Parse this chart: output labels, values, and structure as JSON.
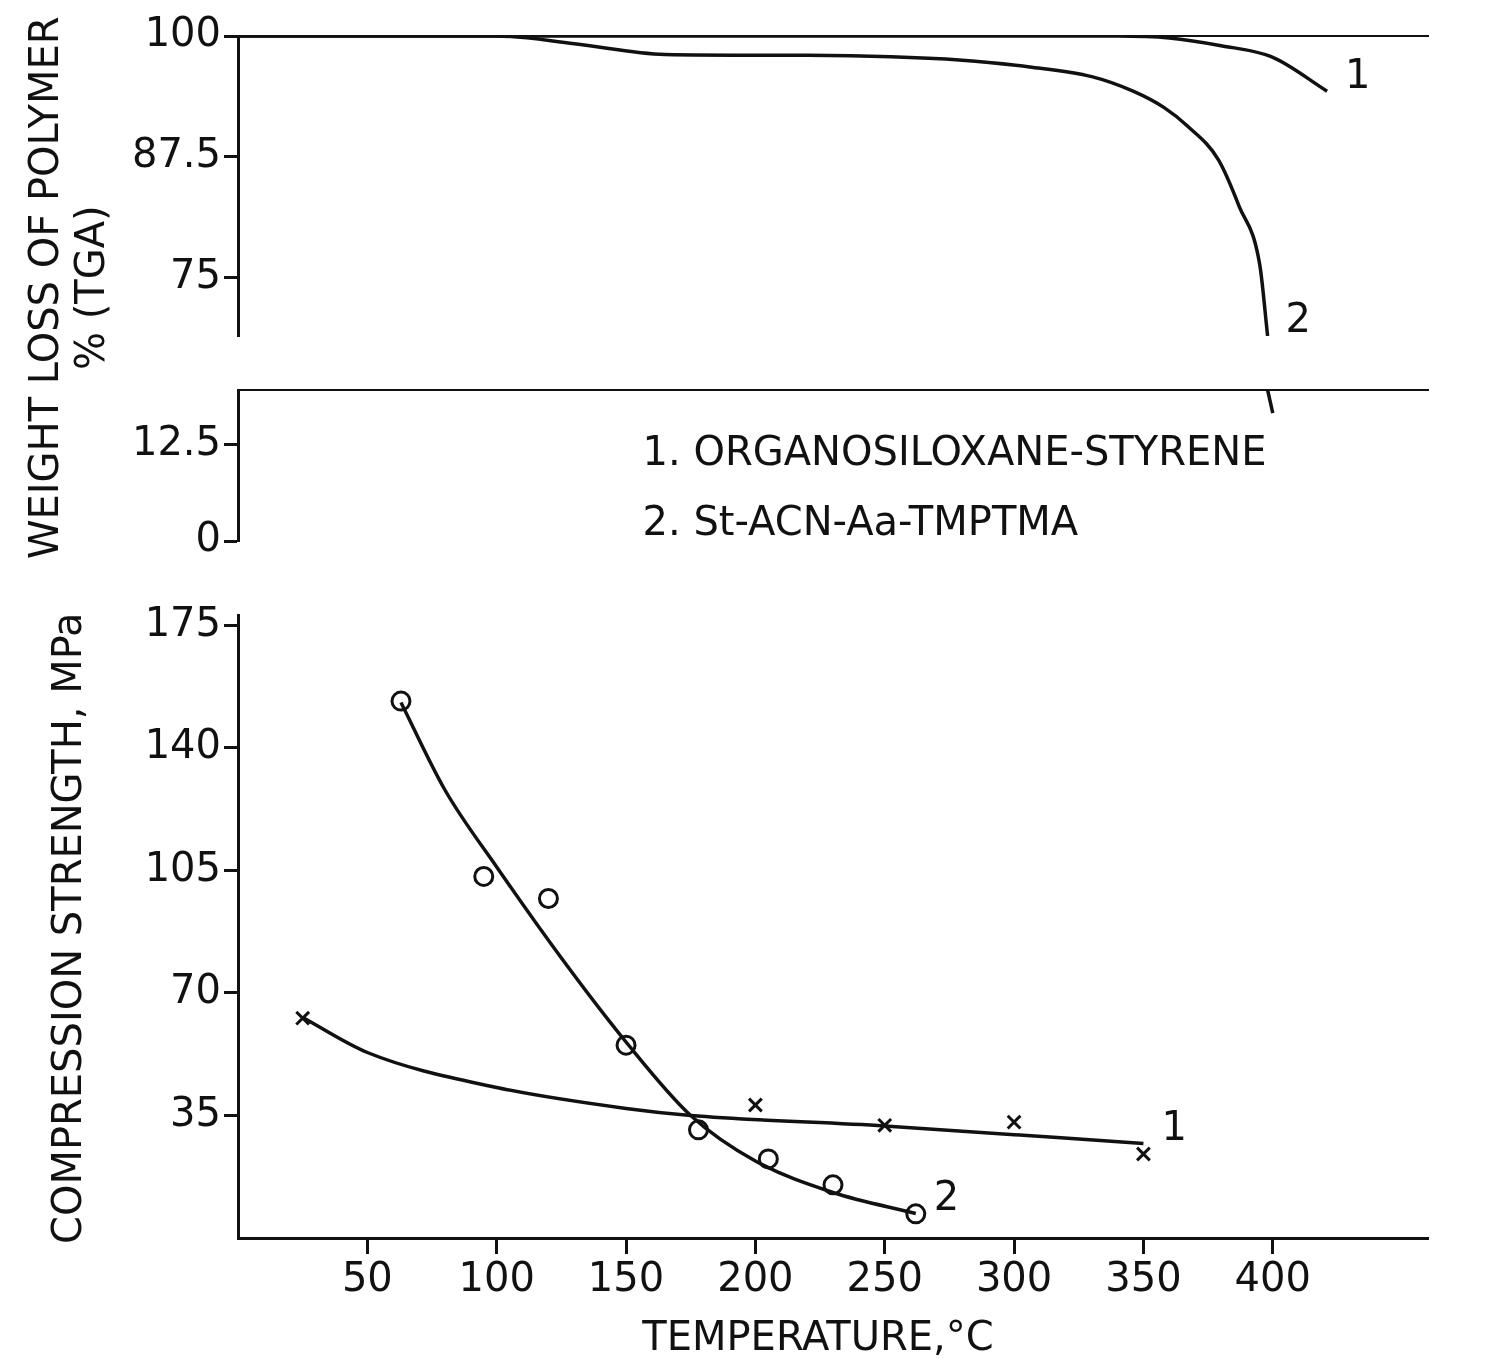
{
  "chart_data": [
    {
      "type": "line",
      "ylabel": "WEIGHT LOSS OF POLYMER % (TGA)",
      "xlim": [
        0,
        460
      ],
      "xticks": [
        50,
        100,
        150,
        200,
        250,
        300,
        350,
        400
      ],
      "ylim": [
        69,
        100
      ],
      "yticks": [
        75,
        87.5,
        100
      ],
      "tick_labels": "y",
      "marker": "none",
      "line_style": "solid",
      "series": [
        {
          "name": "1",
          "color": "#111111",
          "x": [
            0,
            100,
            200,
            300,
            340,
            360,
            380,
            400,
            421
          ],
          "values": [
            100,
            100,
            100,
            100,
            100,
            99.8,
            99,
            97.8,
            94.3
          ]
        },
        {
          "name": "2",
          "color": "#111111",
          "x": [
            0,
            100,
            130,
            165,
            220,
            280,
            306,
            330,
            346,
            358,
            367,
            379,
            387,
            395,
            398
          ],
          "values": [
            100,
            100,
            99.2,
            98.1,
            98,
            97.5,
            96.8,
            95.8,
            94.3,
            92.6,
            90.7,
            87.2,
            82.4,
            76.3,
            69
          ]
        }
      ]
    },
    {
      "type": "line",
      "xlim": [
        0,
        460
      ],
      "xticks": [
        50,
        100,
        150,
        200,
        250,
        300,
        350,
        400
      ],
      "ylim": [
        0,
        19.5
      ],
      "yticks": [
        0,
        12.5
      ],
      "tick_labels": "y",
      "marker": "none",
      "series": [
        {
          "color": "#111111",
          "x": [
            398,
            400
          ],
          "values": [
            19.5,
            16.5
          ]
        }
      ],
      "annotations": [
        "1. ORGANOSILOXANE-STYRENE",
        "2. St-ACN-Aa-TMPTMA"
      ]
    },
    {
      "type": "scatter",
      "ylabel": "COMPRESSION STRENGTH, MPa",
      "xlabel": "TEMPERATURE,°C",
      "xlim": [
        0,
        460
      ],
      "xticks": [
        50,
        100,
        150,
        200,
        250,
        300,
        350,
        400
      ],
      "ylim": [
        0,
        178
      ],
      "yticks": [
        35,
        70,
        105,
        140,
        175
      ],
      "series": [
        {
          "type": "scatter",
          "marker": "cross",
          "color": "#111111",
          "x": [
            25,
            200,
            250,
            300,
            350
          ],
          "values": [
            62.8,
            38,
            32.2,
            33.1,
            24
          ]
        },
        {
          "type": "scatter",
          "marker": "circle",
          "color": "#111111",
          "x": [
            63,
            95,
            120,
            150,
            178,
            205,
            230,
            262
          ],
          "values": [
            153.4,
            103.3,
            97,
            55.1,
            30.9,
            22.6,
            15.2,
            6.9
          ]
        },
        {
          "name": "1",
          "type": "line",
          "marker": "none",
          "color": "#111111",
          "x": [
            25,
            50,
            100,
            150,
            175,
            250,
            350
          ],
          "values": [
            63,
            53,
            43,
            37,
            35,
            32,
            27
          ]
        },
        {
          "name": "2",
          "type": "line",
          "marker": "none",
          "color": "#111111",
          "x": [
            63,
            80,
            100,
            125,
            150,
            175,
            200,
            230,
            262
          ],
          "values": [
            153,
            128,
            106,
            80,
            56,
            35,
            22,
            13,
            7
          ]
        }
      ]
    }
  ]
}
